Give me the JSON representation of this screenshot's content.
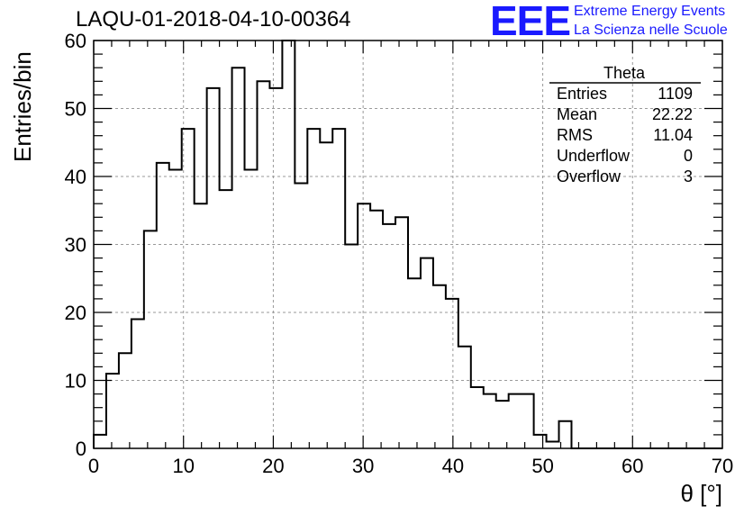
{
  "title": "LAQU-01-2018-04-10-00364",
  "logo": {
    "mark": "EEE",
    "line1": "Extreme Energy Events",
    "line2": "La Scienza nelle Scuole",
    "color": "#1a1aff"
  },
  "stats": {
    "name": "Theta",
    "rows": [
      {
        "label": "Entries",
        "value": "1109"
      },
      {
        "label": "Mean",
        "value": "22.22"
      },
      {
        "label": "RMS",
        "value": "11.04"
      },
      {
        "label": "Underflow",
        "value": "0"
      },
      {
        "label": "Overflow",
        "value": "3"
      }
    ]
  },
  "chart_data": {
    "type": "bar",
    "histogram": true,
    "xlabel": "θ [°]",
    "ylabel": "Entries/bin",
    "xlim": [
      0,
      70
    ],
    "ylim": [
      0,
      60
    ],
    "xticks": [
      0,
      10,
      20,
      30,
      40,
      50,
      60,
      70
    ],
    "yticks": [
      0,
      10,
      20,
      30,
      40,
      50,
      60
    ],
    "grid": true,
    "bin_width": 1.4,
    "values": [
      2,
      11,
      14,
      19,
      32,
      42,
      41,
      47,
      36,
      53,
      38,
      56,
      41,
      54,
      53,
      60,
      39,
      47,
      45,
      47,
      30,
      36,
      35,
      33,
      34,
      25,
      28,
      24,
      22,
      15,
      9,
      8,
      7,
      8,
      8,
      2,
      1,
      4,
      0,
      0,
      0,
      0,
      0,
      0,
      0,
      0,
      0,
      0,
      0,
      0
    ],
    "line_color": "#000000"
  }
}
